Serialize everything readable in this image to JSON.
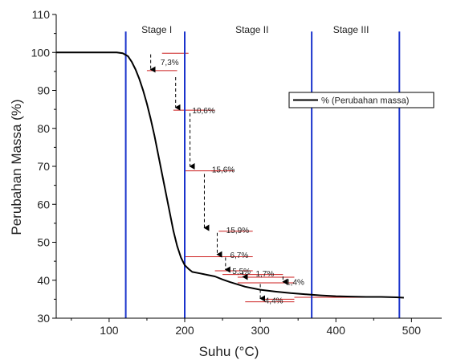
{
  "chart_data": {
    "type": "line",
    "xlabel": "Suhu (°C)",
    "ylabel": "Perubahan Massa (%)",
    "xlim": [
      30,
      540
    ],
    "ylim": [
      30,
      110
    ],
    "xticks": [
      "100",
      "200",
      "300",
      "400",
      "500"
    ],
    "xtick_values": [
      100,
      200,
      300,
      400,
      500
    ],
    "yticks": [
      "30",
      "40",
      "50",
      "60",
      "70",
      "80",
      "90",
      "100",
      "110"
    ],
    "ytick_values": [
      30,
      40,
      50,
      60,
      70,
      80,
      90,
      100,
      110
    ],
    "legend": {
      "label": "% (Perubahan massa)",
      "position": "top-right"
    },
    "series": [
      {
        "name": "% (Perubahan massa)",
        "color": "#000000",
        "x": [
          30,
          100,
          110,
          118,
          125,
          130,
          135,
          140,
          145,
          150,
          155,
          160,
          165,
          170,
          175,
          180,
          185,
          190,
          195,
          200,
          205,
          210,
          220,
          230,
          240,
          250,
          260,
          270,
          280,
          300,
          320,
          340,
          360,
          380,
          400,
          420,
          440,
          460,
          480,
          490
        ],
        "y": [
          100,
          100,
          100,
          99.8,
          99,
          97.5,
          95.5,
          93,
          90,
          86.5,
          82.5,
          78,
          73,
          68,
          63,
          58,
          53,
          49,
          46,
          44,
          43,
          42.2,
          41.8,
          41.4,
          41,
          40.2,
          39.5,
          38.9,
          38.3,
          37.5,
          37,
          36.6,
          36.3,
          36,
          35.8,
          35.7,
          35.6,
          35.6,
          35.5,
          35.4
        ]
      }
    ],
    "stage_lines": {
      "color": "#1a33cc",
      "x": [
        122,
        200,
        368,
        484
      ],
      "y_top": 105.5
    },
    "stages": [
      {
        "label": "Stage I",
        "x": 163,
        "y": 106
      },
      {
        "label": "Stage II",
        "x": 289,
        "y": 106
      },
      {
        "label": "Stage III",
        "x": 420,
        "y": 106
      }
    ],
    "reference_lines": {
      "color": "#cc1f1f",
      "segments": [
        {
          "x1": 150,
          "x2": 190,
          "y": 95.2
        },
        {
          "x1": 170,
          "x2": 205,
          "y": 99.8
        },
        {
          "x1": 185,
          "x2": 240,
          "y": 84.8
        },
        {
          "x1": 200,
          "x2": 245,
          "y": 68.8
        },
        {
          "x1": 235,
          "x2": 265,
          "y": 68.8
        },
        {
          "x1": 245,
          "x2": 290,
          "y": 52.9
        },
        {
          "x1": 200,
          "x2": 290,
          "y": 46.2
        },
        {
          "x1": 240,
          "x2": 290,
          "y": 42.5
        },
        {
          "x1": 250,
          "x2": 330,
          "y": 41.5
        },
        {
          "x1": 270,
          "x2": 345,
          "y": 40.8
        },
        {
          "x1": 270,
          "x2": 345,
          "y": 39.3
        },
        {
          "x1": 305,
          "x2": 345,
          "y": 35.0
        },
        {
          "x1": 280,
          "x2": 345,
          "y": 34.3
        },
        {
          "x1": 345,
          "x2": 480,
          "y": 35.5
        }
      ]
    },
    "annotations": [
      {
        "text": "7,3%",
        "x": 168,
        "y": 97.5,
        "arrow": [
          [
            155,
            99.5
          ],
          [
            155,
            95.5
          ]
        ]
      },
      {
        "text": "10,6%",
        "x": 210,
        "y": 84.8,
        "arrow": [
          [
            188,
            93.5
          ],
          [
            188,
            85.5
          ]
        ]
      },
      {
        "text": "15,6%",
        "x": 236,
        "y": 69.3,
        "arrow": [
          [
            207,
            84
          ],
          [
            207,
            70
          ]
        ]
      },
      {
        "text": "15,9%",
        "x": 255,
        "y": 53.3,
        "arrow": [
          [
            226,
            68
          ],
          [
            226,
            53.8
          ]
        ]
      },
      {
        "text": "6,7%",
        "x": 260,
        "y": 46.7,
        "arrow": [
          [
            243,
            52.5
          ],
          [
            243,
            46.8
          ]
        ]
      },
      {
        "text": "5,5%",
        "x": 263,
        "y": 42.5,
        "arrow": [
          [
            254,
            46
          ],
          [
            254,
            42.8
          ]
        ]
      },
      {
        "text": "1,7%",
        "x": 294,
        "y": 41.9,
        "arrow": [
          [
            277,
            42.3
          ],
          [
            277,
            40.9
          ]
        ]
      },
      {
        "text": "1,4%",
        "x": 334,
        "y": 39.6,
        "arrow": [
          [
            330,
            41
          ],
          [
            330,
            39.6
          ]
        ]
      },
      {
        "text": "4,4%",
        "x": 306,
        "y": 34.8,
        "arrow": [
          [
            300,
            39
          ],
          [
            300,
            35.2
          ]
        ]
      }
    ]
  }
}
